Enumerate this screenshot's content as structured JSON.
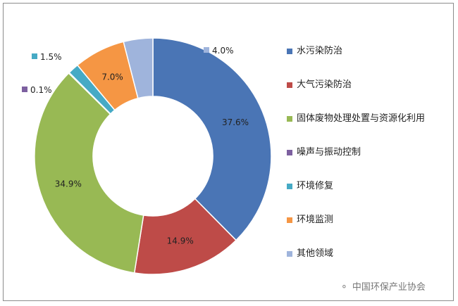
{
  "chart_data": {
    "type": "pie",
    "donut": true,
    "categories": [
      "水污染防治",
      "大气污染防治",
      "固体废物处理处置与资源化利用",
      "噪声与振动控制",
      "环境修复",
      "环境监测",
      "其他领域"
    ],
    "values": [
      37.6,
      14.9,
      34.9,
      0.1,
      1.5,
      7.0,
      4.0
    ],
    "data_labels": [
      "37.6%",
      "14.9%",
      "34.9%",
      "0.1%",
      "1.5%",
      "7.0%",
      "4.0%"
    ],
    "colors": [
      "#4a75b5",
      "#be4b48",
      "#98b954",
      "#7d60a0",
      "#46aac5",
      "#f59644",
      "#9fb4dc"
    ],
    "legend_position": "right"
  },
  "legend": {
    "items": [
      {
        "label": "水污染防治",
        "color": "#4a75b5"
      },
      {
        "label": "大气污染防治",
        "color": "#be4b48"
      },
      {
        "label": "固体废物处理处置与资源化利用",
        "color": "#98b954"
      },
      {
        "label": "噪声与振动控制",
        "color": "#7d60a0"
      },
      {
        "label": "环境修复",
        "color": "#46aac5"
      },
      {
        "label": "环境监测",
        "color": "#f59644"
      },
      {
        "label": "其他领域",
        "color": "#9fb4dc"
      }
    ]
  },
  "watermark": {
    "icon": "wechat-icon",
    "text": "中国环保产业协会"
  }
}
